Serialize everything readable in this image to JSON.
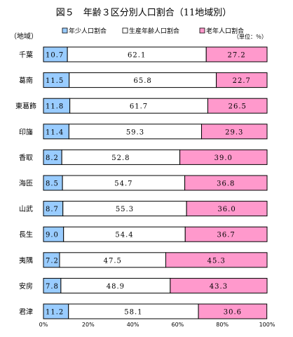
{
  "chart_data": {
    "type": "bar",
    "stacked": true,
    "orientation": "horizontal",
    "title": "図５　年齢３区分別人口割合（11地域別）",
    "category_header": "（地域）",
    "unit": "（単位：％）",
    "categories": [
      "千葉",
      "葛南",
      "東葛飾",
      "印旛",
      "香取",
      "海匝",
      "山武",
      "長生",
      "夷隅",
      "安房",
      "君津"
    ],
    "series": [
      {
        "name": "年少人口割合",
        "color": "#99ccff",
        "values": [
          10.7,
          11.5,
          11.8,
          11.4,
          8.2,
          8.5,
          8.7,
          9.0,
          7.2,
          7.8,
          11.2
        ]
      },
      {
        "name": "生産年齢人口割合",
        "color": "#ffffff",
        "values": [
          62.1,
          65.8,
          61.7,
          59.3,
          52.8,
          54.7,
          55.3,
          54.4,
          47.5,
          48.9,
          58.1
        ]
      },
      {
        "name": "老年人口割合",
        "color": "#ff99cc",
        "values": [
          27.2,
          22.7,
          26.5,
          29.3,
          39.0,
          36.8,
          36.0,
          36.7,
          45.3,
          43.3,
          30.6
        ]
      }
    ],
    "xlim": [
      0,
      100
    ],
    "x_ticks": [
      "0%",
      "20%",
      "40%",
      "60%",
      "80%",
      "100%"
    ],
    "legend_position": "top",
    "grid": false
  }
}
